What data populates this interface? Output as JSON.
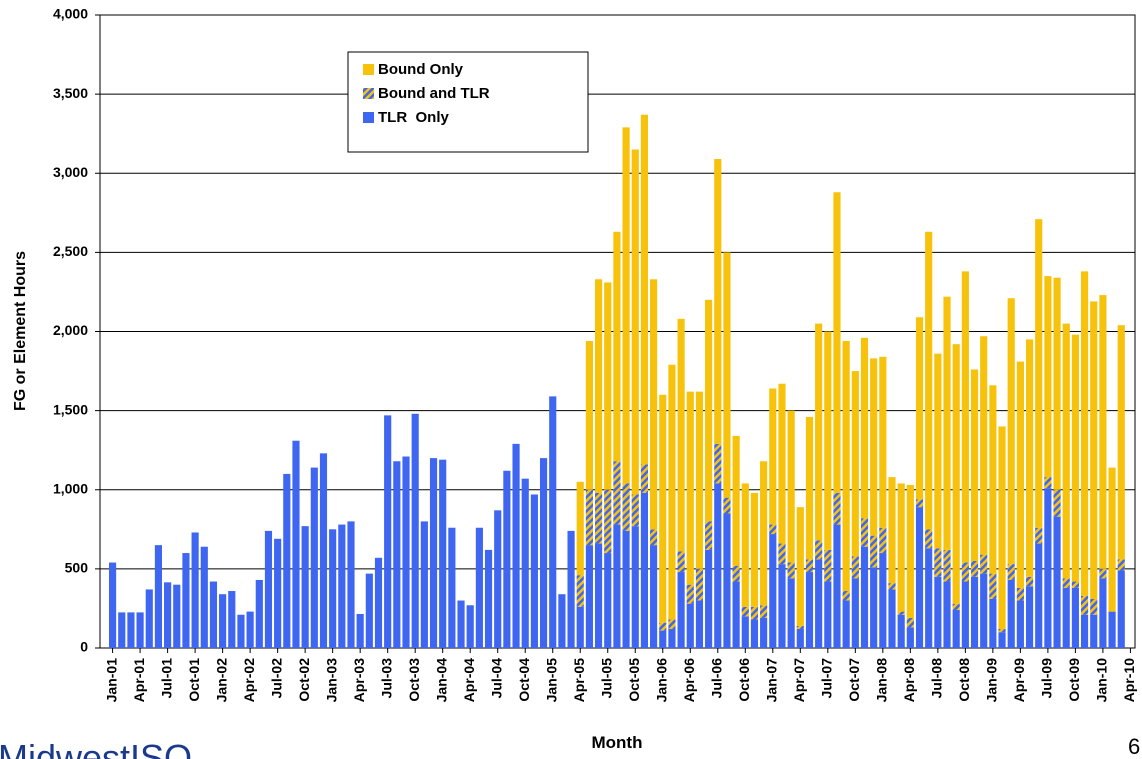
{
  "chart_data": {
    "type": "stacked-bar",
    "y_label": "FG or Element Hours",
    "x_label": "Month",
    "categories": [
      "Jan-01",
      null,
      null,
      "Apr-01",
      null,
      null,
      "Jul-01",
      null,
      null,
      "Oct-01",
      null,
      null,
      "Jan-02",
      null,
      null,
      "Apr-02",
      null,
      null,
      "Jul-02",
      null,
      null,
      "Oct-02",
      null,
      null,
      "Jan-03",
      null,
      null,
      "Apr-03",
      null,
      null,
      "Jul-03",
      null,
      null,
      "Oct-03",
      null,
      null,
      "Jan-04",
      null,
      null,
      "Apr-04",
      null,
      null,
      "Jul-04",
      null,
      null,
      "Oct-04",
      null,
      null,
      "Jan-05",
      null,
      null,
      "Apr-05",
      null,
      null,
      "Jul-05",
      null,
      null,
      "Oct-05",
      null,
      null,
      "Jan-06",
      null,
      null,
      "Apr-06",
      null,
      null,
      "Jul-06",
      null,
      null,
      "Oct-06",
      null,
      null,
      "Jan-07",
      null,
      null,
      "Apr-07",
      null,
      null,
      "Jul-07",
      null,
      null,
      "Oct-07",
      null,
      null,
      "Jan-08",
      null,
      null,
      "Apr-08",
      null,
      null,
      "Jul-08",
      null,
      null,
      "Oct-08",
      null,
      null,
      "Jan-09",
      null,
      null,
      "Apr-09",
      null,
      null,
      "Jul-09",
      null,
      null,
      "Oct-09",
      null,
      null,
      "Jan-10",
      null,
      null,
      "Apr-10"
    ],
    "series": [
      {
        "name": "Bound Only",
        "color": "#f7c20c",
        "values": [
          0,
          0,
          0,
          0,
          0,
          0,
          0,
          0,
          0,
          0,
          0,
          0,
          0,
          0,
          0,
          0,
          0,
          0,
          0,
          0,
          0,
          0,
          0,
          0,
          0,
          0,
          0,
          0,
          0,
          0,
          0,
          0,
          0,
          0,
          0,
          0,
          0,
          0,
          0,
          0,
          0,
          0,
          0,
          0,
          0,
          0,
          0,
          0,
          0,
          0,
          0,
          590,
          940,
          1350,
          1310,
          1450,
          2250,
          2180,
          2210,
          1580,
          1440,
          1610,
          1470,
          1220,
          1120,
          1400,
          1800,
          1550,
          820,
          780,
          720,
          910,
          860,
          1010,
          960,
          750,
          900,
          1370,
          1380,
          1900,
          1580,
          1170,
          1140,
          1120,
          1080,
          670,
          810,
          840,
          1150,
          1880,
          1230,
          1600,
          1640,
          1840,
          1210,
          1380,
          1190,
          1280,
          1680,
          1430,
          1500,
          1950,
          1270,
          1340,
          1610,
          1560,
          2050,
          1880,
          1730,
          910,
          1480,
          0
        ]
      },
      {
        "name": "Bound and TLR",
        "color": "#3f66f0",
        "color2": "#f7c20c",
        "values": [
          0,
          0,
          0,
          0,
          0,
          0,
          0,
          0,
          0,
          0,
          0,
          0,
          0,
          0,
          0,
          0,
          0,
          0,
          0,
          0,
          0,
          0,
          0,
          0,
          0,
          0,
          0,
          0,
          0,
          0,
          0,
          0,
          0,
          0,
          0,
          0,
          0,
          0,
          0,
          0,
          0,
          0,
          0,
          0,
          0,
          0,
          0,
          0,
          0,
          0,
          0,
          200,
          350,
          320,
          400,
          400,
          300,
          200,
          180,
          100,
          50,
          60,
          130,
          120,
          200,
          180,
          250,
          100,
          100,
          60,
          80,
          80,
          60,
          130,
          100,
          20,
          80,
          120,
          200,
          200,
          60,
          140,
          180,
          200,
          160,
          40,
          20,
          60,
          50,
          120,
          180,
          200,
          40,
          120,
          100,
          120,
          160,
          20,
          100,
          80,
          60,
          100,
          70,
          170,
          60,
          40,
          120,
          100,
          60,
          0,
          70,
          0
        ]
      },
      {
        "name": "TLR  Only",
        "color": "#3f66f0",
        "values": [
          540,
          225,
          225,
          225,
          370,
          650,
          415,
          400,
          600,
          730,
          640,
          420,
          340,
          360,
          210,
          230,
          430,
          740,
          690,
          1100,
          1310,
          770,
          1140,
          1230,
          750,
          780,
          800,
          215,
          470,
          570,
          1470,
          1180,
          1210,
          1480,
          800,
          1200,
          1190,
          760,
          300,
          270,
          760,
          620,
          870,
          1120,
          1290,
          1070,
          970,
          1200,
          1590,
          340,
          740,
          260,
          650,
          660,
          600,
          780,
          740,
          770,
          980,
          650,
          110,
          120,
          480,
          280,
          300,
          620,
          1040,
          850,
          420,
          200,
          180,
          190,
          720,
          530,
          440,
          120,
          480,
          560,
          420,
          780,
          300,
          440,
          640,
          510,
          600,
          370,
          210,
          130,
          890,
          630,
          450,
          420,
          240,
          420,
          450,
          470,
          310,
          100,
          430,
          300,
          390,
          660,
          1010,
          830,
          380,
          380,
          210,
          210,
          440,
          230,
          490,
          0
        ]
      }
    ],
    "ylim": [
      0,
      4000
    ],
    "yticks": [
      0,
      500,
      {
        "value": 1000,
        "label": "1,000"
      },
      {
        "value": 1500,
        "label": "1,500"
      },
      {
        "value": 2000,
        "label": "2,000"
      },
      {
        "value": 2500,
        "label": "2,500"
      },
      {
        "value": 3000,
        "label": "3,000"
      },
      {
        "value": 3500,
        "label": "3,500"
      },
      {
        "value": 4000,
        "label": "4,000"
      }
    ],
    "grid": true
  },
  "footer": {
    "logo": "MidwestISO",
    "page_number": "6"
  }
}
